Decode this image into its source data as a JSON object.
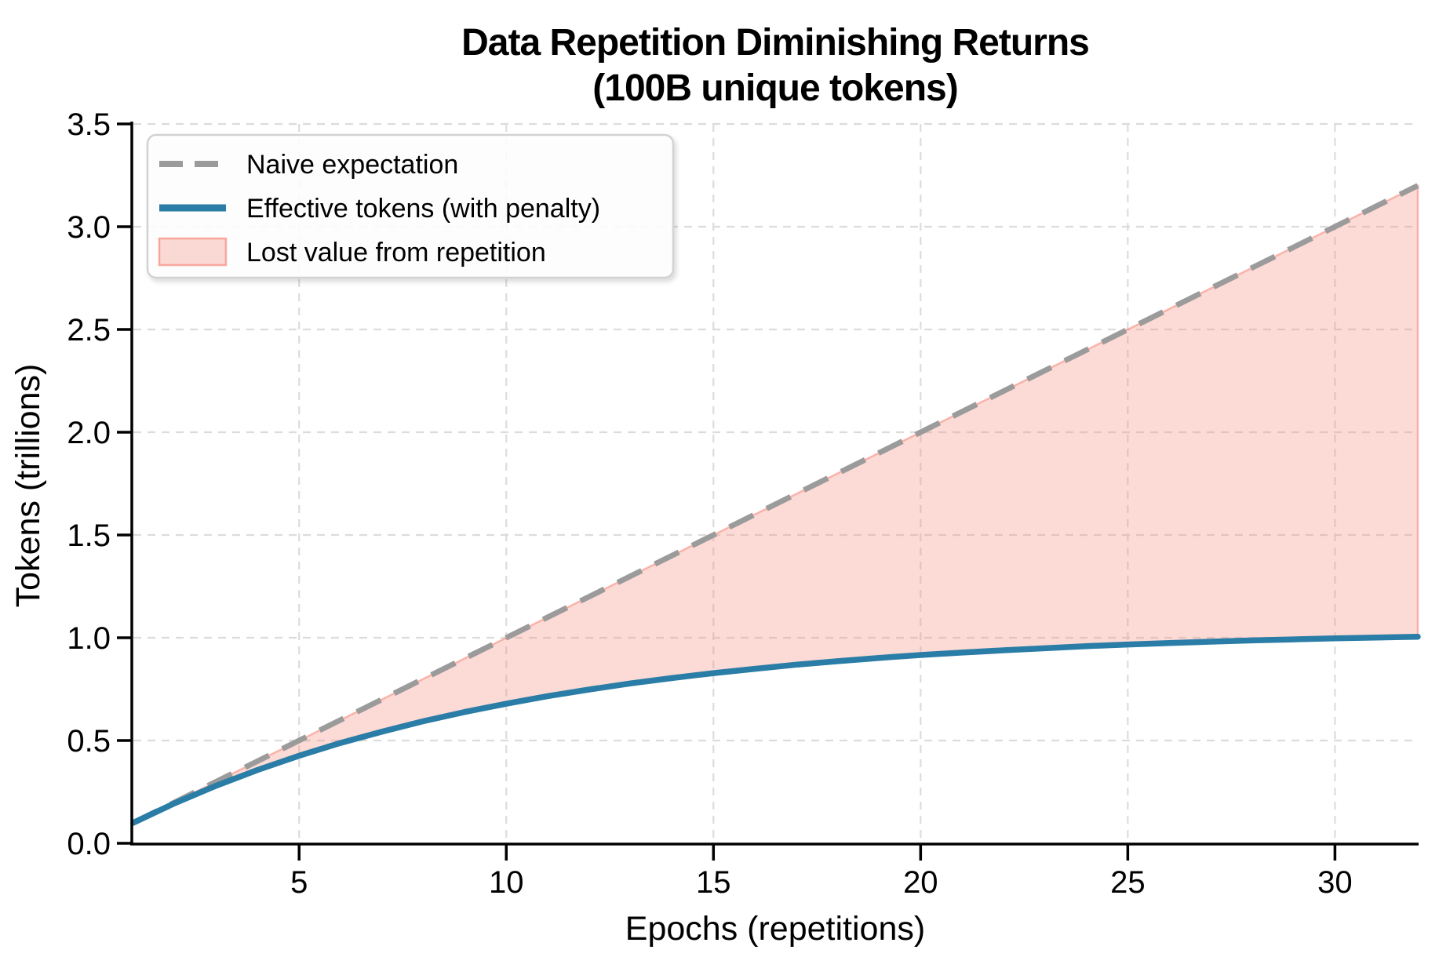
{
  "title": {
    "line1": "Data Repetition Diminishing Returns",
    "line2": "(100B unique tokens)"
  },
  "axes": {
    "xlabel": "Epochs (repetitions)",
    "ylabel": "Tokens (trillions)",
    "x_tick_labels": [
      "5",
      "10",
      "15",
      "20",
      "25",
      "30"
    ],
    "x_tick_values": [
      5,
      10,
      15,
      20,
      25,
      30
    ],
    "y_tick_labels": [
      "0.0",
      "0.5",
      "1.0",
      "1.5",
      "2.0",
      "2.5",
      "3.0",
      "3.5"
    ],
    "y_tick_values": [
      0.0,
      0.5,
      1.0,
      1.5,
      2.0,
      2.5,
      3.0,
      3.5
    ],
    "xlim": [
      1,
      32
    ],
    "ylim": [
      0,
      3.5
    ],
    "grid": true,
    "grid_style": "dashed"
  },
  "colors": {
    "naive_line": "#9b9b9b",
    "effective_line": "#2a7da6",
    "lost_area_fill": "rgba(247,143,129,0.33)",
    "lost_area_edge": "rgba(246,124,109,0.5)",
    "gridline": "#dcdcdc",
    "spine": "#000000",
    "legend_border": "#d2d2d2",
    "legend_background": "rgba(255,255,255,0.87)"
  },
  "chart_data": {
    "type": "line",
    "title": "Data Repetition Diminishing Returns (100B unique tokens)",
    "xlabel": "Epochs (repetitions)",
    "ylabel": "Tokens (trillions)",
    "xlim": [
      1,
      32
    ],
    "ylim": [
      0,
      3.5
    ],
    "legend_position": "upper left",
    "x": [
      1,
      2,
      3,
      4,
      5,
      6,
      7,
      8,
      9,
      10,
      11,
      12,
      13,
      14,
      15,
      16,
      17,
      18,
      19,
      20,
      21,
      22,
      23,
      24,
      25,
      26,
      27,
      28,
      29,
      30,
      31,
      32
    ],
    "series": [
      {
        "name": "Naive expectation",
        "style": "dashed",
        "values": [
          0.1,
          0.2,
          0.3,
          0.4,
          0.5,
          0.6,
          0.7,
          0.8,
          0.9,
          1.0,
          1.1,
          1.2,
          1.3,
          1.4,
          1.5,
          1.6,
          1.7,
          1.8,
          1.9,
          2.0,
          2.1,
          2.2,
          2.3,
          2.4,
          2.5,
          2.6,
          2.7,
          2.8,
          2.9,
          3.0,
          3.1,
          3.2
        ]
      },
      {
        "name": "Effective tokens (with penalty)",
        "style": "solid",
        "values": [
          0.1,
          0.195,
          0.28,
          0.357,
          0.426,
          0.488,
          0.543,
          0.594,
          0.639,
          0.679,
          0.716,
          0.748,
          0.778,
          0.804,
          0.828,
          0.849,
          0.869,
          0.886,
          0.902,
          0.916,
          0.928,
          0.939,
          0.949,
          0.959,
          0.967,
          0.974,
          0.981,
          0.987,
          0.992,
          0.997,
          1.001,
          1.005
        ]
      }
    ],
    "area": {
      "name": "Lost value from repetition",
      "between": [
        "Naive expectation",
        "Effective tokens (with penalty)"
      ]
    },
    "legend": [
      {
        "label": "Naive expectation",
        "swatch": "dashed-line"
      },
      {
        "label": "Effective tokens (with penalty)",
        "swatch": "solid-line"
      },
      {
        "label": "Lost value from repetition",
        "swatch": "filled-patch"
      }
    ]
  }
}
